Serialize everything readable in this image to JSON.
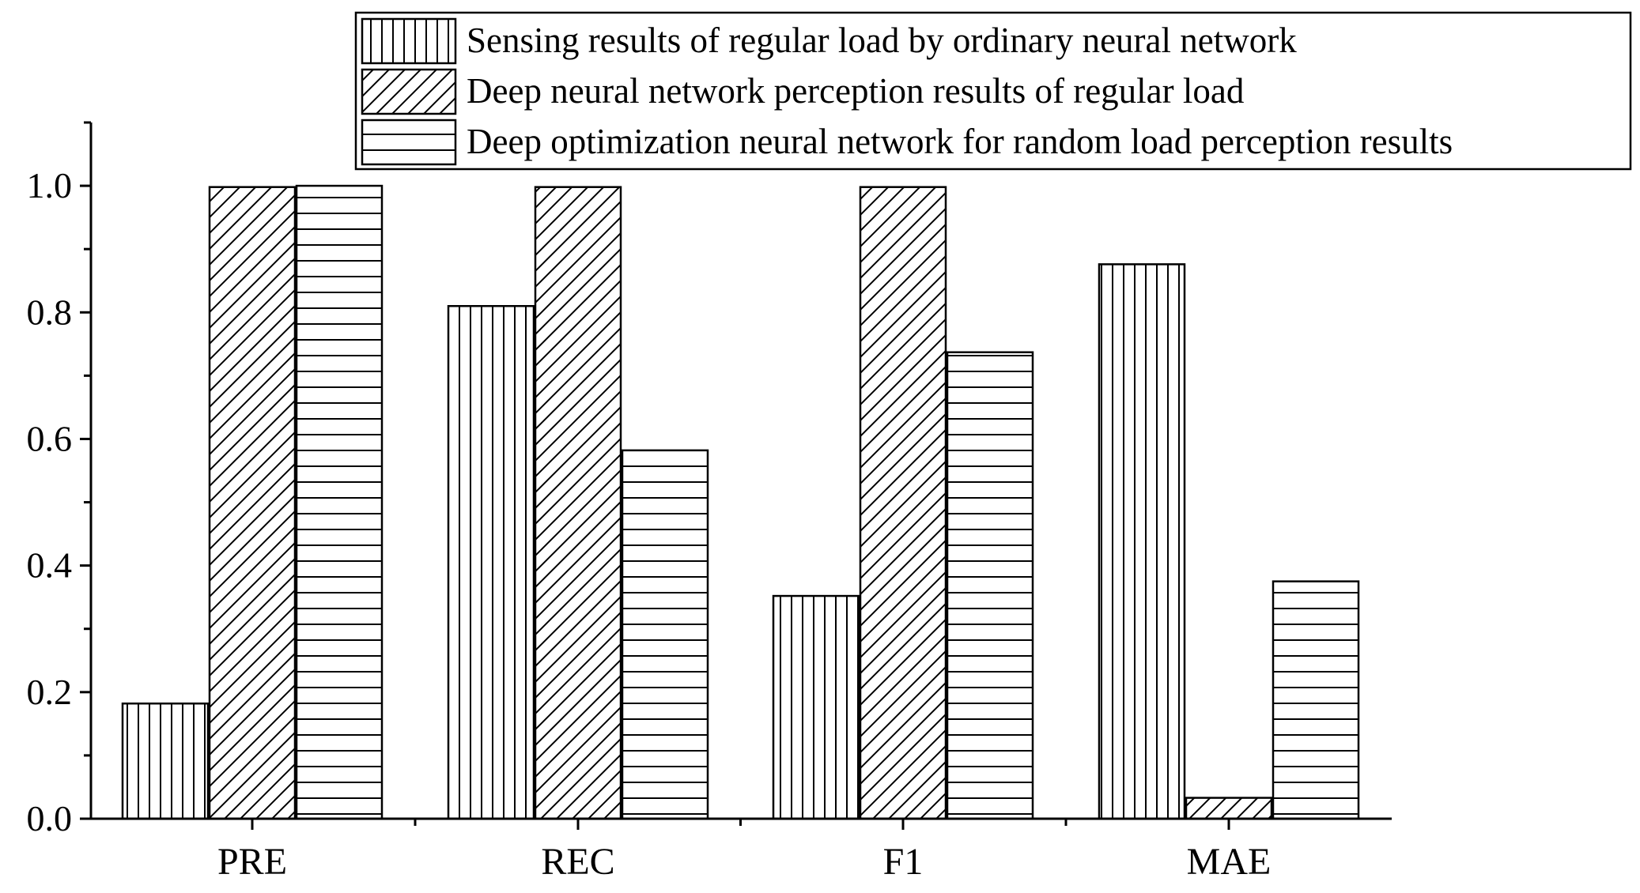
{
  "chart_data": {
    "type": "bar",
    "categories": [
      "PRE",
      "REC",
      "F1",
      "MAE"
    ],
    "series": [
      {
        "name": "Sensing results of regular load by ordinary neural network",
        "pattern": "vertical",
        "values": [
          0.182,
          0.81,
          0.352,
          0.876
        ]
      },
      {
        "name": "Deep neural network perception results of regular load",
        "pattern": "diagonal",
        "values": [
          0.998,
          0.998,
          0.998,
          0.033
        ]
      },
      {
        "name": "Deep optimization neural network for random load perception results",
        "pattern": "horizontal",
        "values": [
          1.0,
          0.582,
          0.737,
          0.375
        ]
      }
    ],
    "yticks": [
      "0.0",
      "0.2",
      "0.4",
      "0.6",
      "0.8",
      "1.0"
    ],
    "ylim": [
      0,
      1.1
    ],
    "title": "",
    "xlabel": "",
    "ylabel": "",
    "grid": false,
    "legend_position": "top-right",
    "colors": {
      "stroke": "#000000",
      "fill": "#ffffff"
    }
  }
}
